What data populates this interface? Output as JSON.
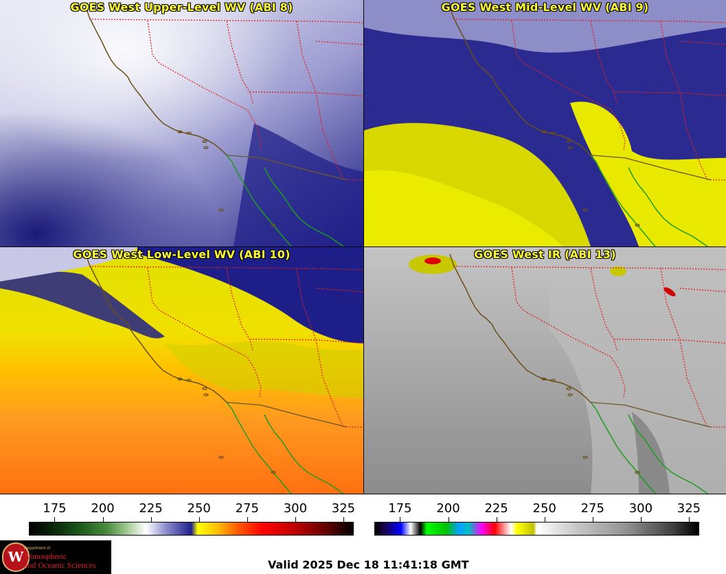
{
  "panels": [
    {
      "title": "GOES West Upper-Level WV (ABI 8)",
      "scheme": "wv"
    },
    {
      "title": "GOES West Mid-Level WV (ABI 9)",
      "scheme": "wv"
    },
    {
      "title": "GOES West Low-Level WV (ABI 10)",
      "scheme": "wv"
    },
    {
      "title": "GOES West IR (ABI 13)",
      "scheme": "ir"
    }
  ],
  "colorbars": {
    "left": {
      "ticks": [
        "175",
        "200",
        "225",
        "250",
        "275",
        "300",
        "325"
      ],
      "min": 162,
      "max": 330,
      "scheme": "water-vapor"
    },
    "right": {
      "ticks": [
        "175",
        "200",
        "225",
        "250",
        "275",
        "300",
        "325"
      ],
      "min": 162,
      "max": 330,
      "scheme": "infrared"
    }
  },
  "logo": {
    "seal": "W",
    "dept": "Department of",
    "line1": "Atmospheric",
    "line2": "and Oceanic Sciences"
  },
  "footer": {
    "valid": "Valid 2025 Dec 18 11:41:18 GMT"
  },
  "colors": {
    "coastline": "#6b4f1a",
    "mexico_coast": "#1e9c1e",
    "state_borders": "#e02020",
    "title": "#ffff33"
  }
}
